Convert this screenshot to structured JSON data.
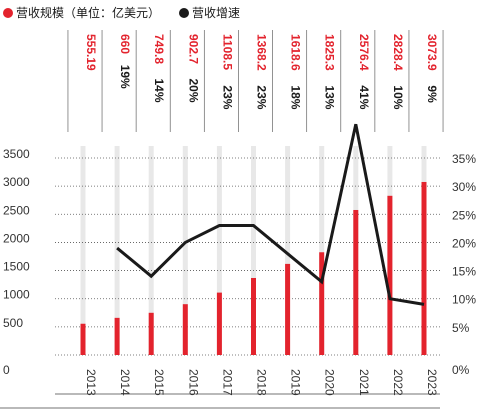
{
  "legend": {
    "revenue": "营收规模（单位：亿美元）",
    "growth": "营收增速"
  },
  "colors": {
    "revenue": "#e3232d",
    "growth": "#1a1a1a",
    "band": "#e8e8e8"
  },
  "chart_data": {
    "type": "bar",
    "categories": [
      "2013",
      "2014",
      "2015",
      "2016",
      "2017",
      "2018",
      "2019",
      "2020",
      "2021",
      "2022",
      "2023"
    ],
    "series": [
      {
        "name": "营收规模（单位：亿美元）",
        "type": "bar",
        "axis": "left",
        "values": [
          555.19,
          660,
          749.8,
          902.7,
          1108.5,
          1368.2,
          1618.6,
          1825.3,
          2576.4,
          2828.4,
          3073.9
        ],
        "labels": [
          "555.19",
          "660",
          "749.8",
          "902.7",
          "1108.5",
          "1368.2",
          "1618.6",
          "1825.3",
          "2576.4",
          "2828.4",
          "3073.9"
        ]
      },
      {
        "name": "营收增速",
        "type": "line",
        "axis": "right",
        "values": [
          null,
          19,
          14,
          20,
          23,
          23,
          18,
          13,
          41,
          10,
          9
        ],
        "labels": [
          "",
          "19%",
          "14%",
          "20%",
          "23%",
          "23%",
          "18%",
          "13%",
          "41%",
          "10%",
          "9%"
        ]
      }
    ],
    "y_left": {
      "ticks": [
        "0",
        "500",
        "1000",
        "1500",
        "2000",
        "2500",
        "3000",
        "3500"
      ],
      "range": [
        0,
        3500
      ]
    },
    "y_right": {
      "ticks": [
        "0%",
        "5%",
        "10%",
        "15%",
        "20%",
        "25%",
        "30%",
        "35%"
      ],
      "range": [
        0,
        35
      ]
    },
    "grid": "dotted-horizontal",
    "legend_position": "top-left"
  }
}
